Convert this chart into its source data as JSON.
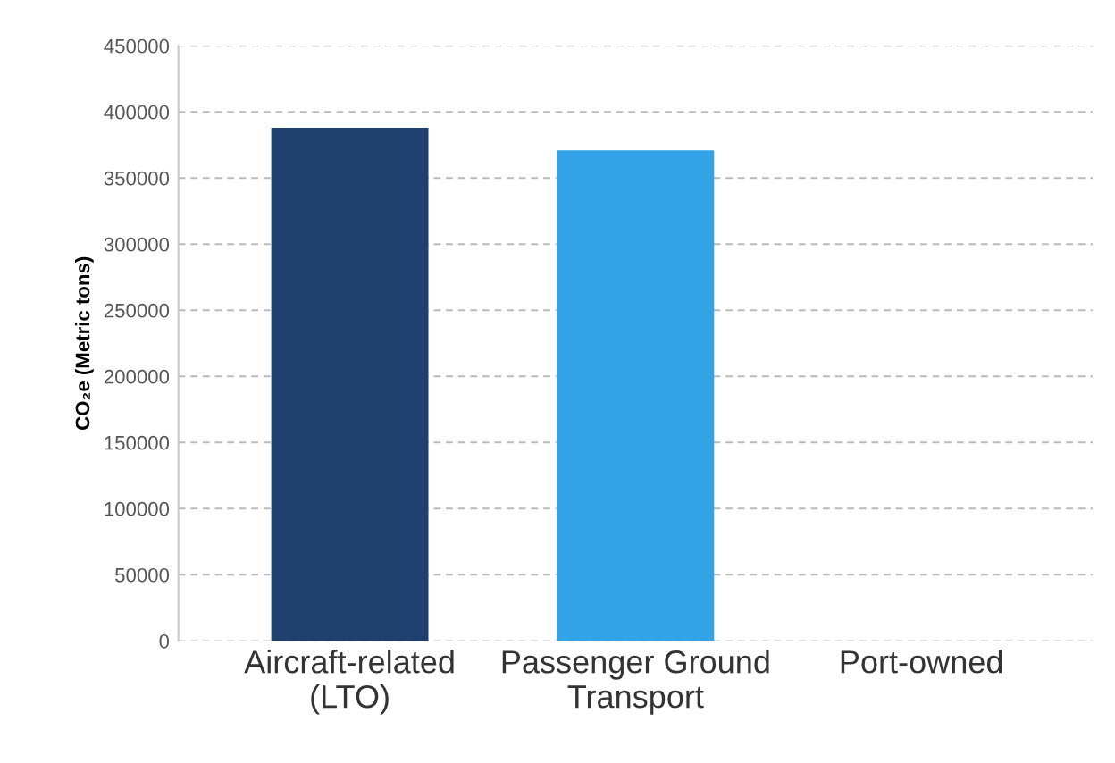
{
  "chart_data": {
    "type": "bar",
    "ylabel": "CO₂e (Metric tons)",
    "categories": [
      "Aircraft-related\n(LTO)",
      "Passenger Ground\nTransport",
      "Port-owned"
    ],
    "values": [
      388000,
      371000,
      0
    ],
    "colors": [
      "#1f3f6e",
      "#33a3e8",
      "#33a3e8"
    ],
    "ylim": [
      0,
      450000
    ],
    "yticks": [
      0,
      50000,
      100000,
      150000,
      200000,
      250000,
      300000,
      350000,
      400000,
      450000
    ],
    "grid": "y",
    "line_style": "dashed"
  }
}
